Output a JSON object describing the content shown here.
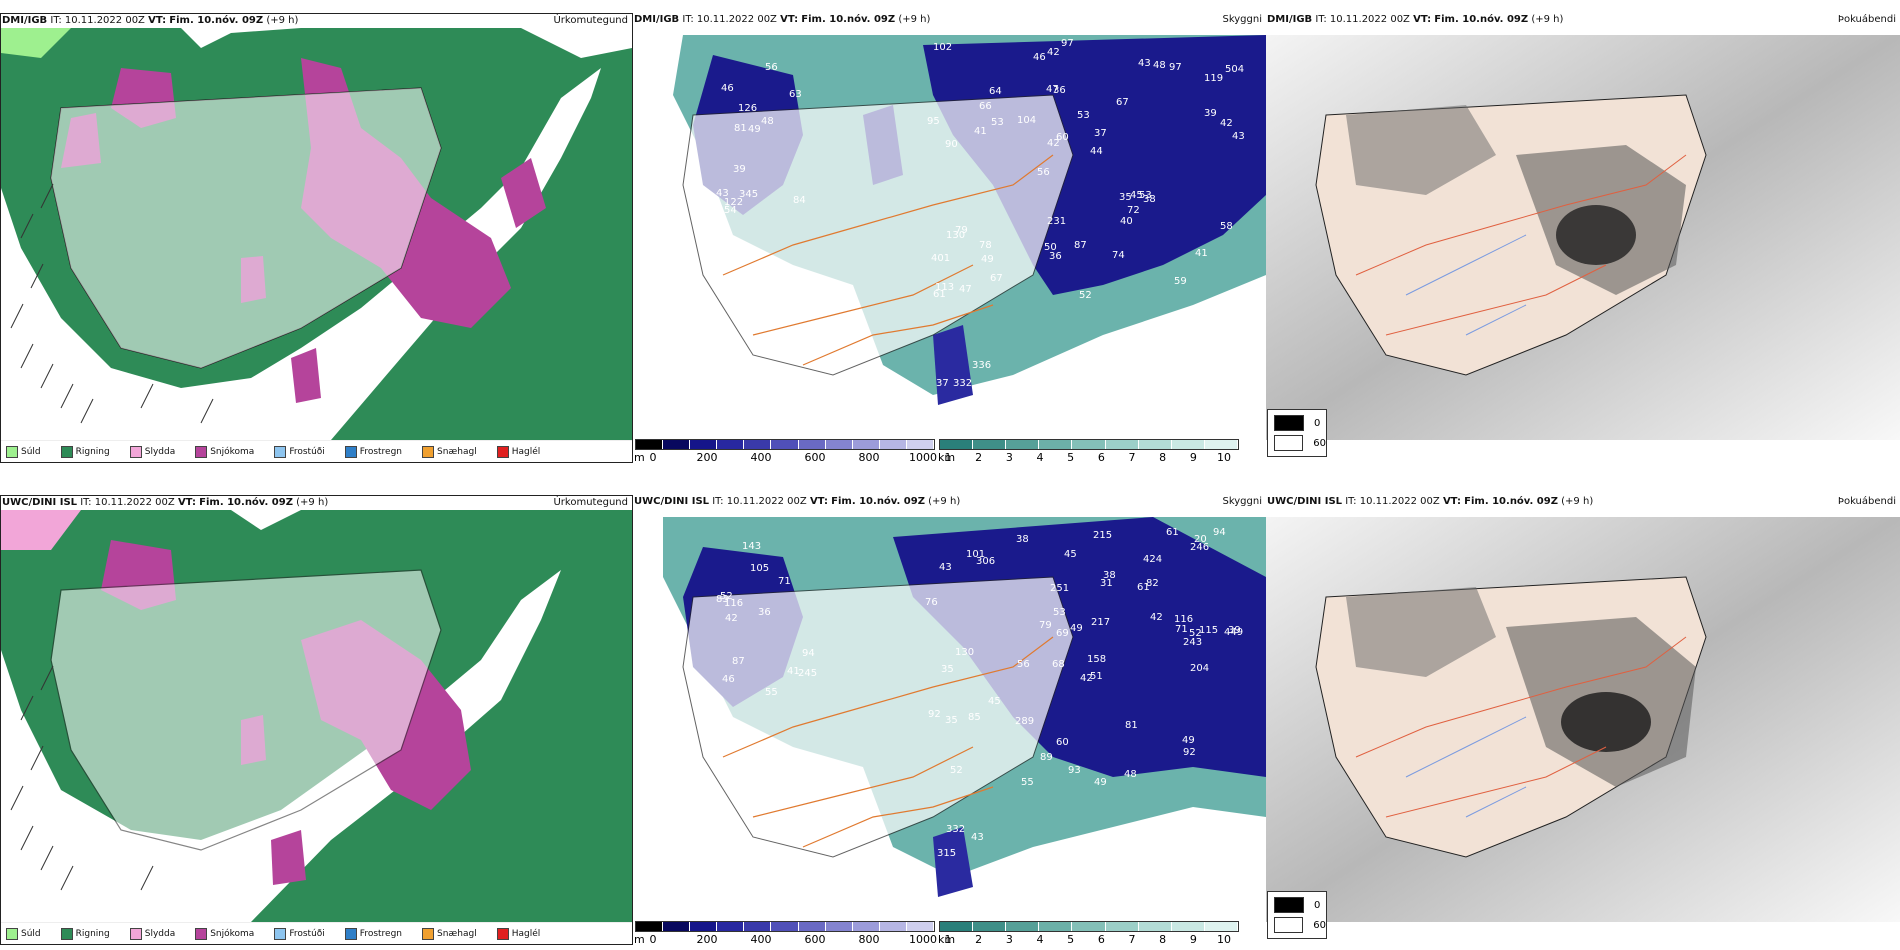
{
  "rows": [
    {
      "model": "DMI/IGB",
      "it_label": "IT:",
      "it_value": "10.11.2022 00Z",
      "vt_label": "VT:",
      "vt_value": "Fim. 10.nóv. 09Z",
      "offset": "(+9 h)",
      "panels": {
        "precip_type": "Úrkomutegund",
        "visibility": "Skyggni",
        "fog": "Þokuábendi"
      },
      "visibility_labels": [
        "84",
        "90",
        "119",
        "56",
        "67",
        "122",
        "47",
        "53",
        "79",
        "104",
        "43",
        "49",
        "36",
        "37",
        "38",
        "46",
        "42",
        "43",
        "35",
        "39",
        "49",
        "50",
        "42",
        "64",
        "43",
        "39",
        "59",
        "41",
        "53",
        "52",
        "126",
        "41",
        "40",
        "67",
        "42",
        "48",
        "113",
        "36",
        "44",
        "130",
        "63",
        "504",
        "72",
        "74",
        "78",
        "54",
        "61",
        "87",
        "97",
        "97",
        "81",
        "95",
        "66",
        "48",
        "47",
        "56",
        "46",
        "60",
        "58",
        "231",
        "345",
        "45",
        "53",
        "401",
        "102",
        "336",
        "332",
        "37"
      ],
      "fog_extra": ""
    },
    {
      "model": "UWC/DINI ISL",
      "it_label": "IT:",
      "it_value": "10.11.2022 00Z",
      "vt_label": "VT:",
      "vt_value": "Fim. 10.nóv. 09Z",
      "offset": "(+9 h)",
      "panels": {
        "precip_type": "Úrkomutegund",
        "visibility": "Skyggni",
        "fog": "Þokuábendi"
      },
      "visibility_labels": [
        "143",
        "424",
        "449",
        "68",
        "51",
        "42",
        "43",
        "61",
        "35",
        "31",
        "36",
        "52",
        "38",
        "56",
        "49",
        "55",
        "60",
        "61",
        "42",
        "45",
        "116",
        "130",
        "39",
        "115",
        "92",
        "52",
        "69",
        "71",
        "49",
        "35",
        "41",
        "38",
        "85",
        "79",
        "81",
        "94",
        "116",
        "89",
        "94",
        "45",
        "46",
        "55",
        "48",
        "101",
        "93",
        "71",
        "92",
        "82",
        "76",
        "158",
        "105",
        "243",
        "217",
        "246",
        "215",
        "87",
        "53",
        "49",
        "20",
        "251",
        "245",
        "204",
        "306",
        "289",
        "42",
        "83",
        "52",
        "332",
        "315",
        "43"
      ],
      "fog_extra": ""
    }
  ],
  "precip_legend": [
    {
      "label": "Súld",
      "color": "#9ef08f"
    },
    {
      "label": "Rigning",
      "color": "#2e8b57"
    },
    {
      "label": "Slydda",
      "color": "#f2a6d8"
    },
    {
      "label": "Snjókoma",
      "color": "#b5449b"
    },
    {
      "label": "Frostúði",
      "color": "#8ec5ef"
    },
    {
      "label": "Frostregn",
      "color": "#2f7fc8"
    },
    {
      "label": "Snæhagl",
      "color": "#f0a030"
    },
    {
      "label": "Haglél",
      "color": "#e02020"
    }
  ],
  "cbar_height": {
    "unit": "m",
    "ticks": [
      "0",
      "200",
      "400",
      "600",
      "800",
      "1000"
    ],
    "colors": [
      "#000000",
      "#08085e",
      "#15158a",
      "#2828a0",
      "#3a3aaa",
      "#5050b8",
      "#6a6ac4",
      "#8484d0",
      "#9c9cda",
      "#b6b6e4",
      "#cfcfee"
    ]
  },
  "cbar_km": {
    "unit": "km",
    "ticks": [
      "1",
      "2",
      "3",
      "4",
      "5",
      "6",
      "7",
      "8",
      "9",
      "10"
    ],
    "colors": [
      "#2a7f7a",
      "#3f8f88",
      "#56a098",
      "#6cb0a8",
      "#84c0b8",
      "#9ccfc8",
      "#b3dcd6",
      "#c9e8e3",
      "#dff3f0"
    ]
  },
  "fog_legend": {
    "dark": "0",
    "light": "60"
  },
  "colors": {
    "rain": "#2e8b57",
    "snow": "#b5449b",
    "drizzle": "#9ef08f",
    "sleet": "#f2a6d8",
    "vis_dark": "#1a1a8c",
    "vis_teal": "#3a9a90",
    "roads": "#e07a30",
    "fog_land": "#f2e2d6",
    "fog_sea": "#d8d8d8"
  }
}
